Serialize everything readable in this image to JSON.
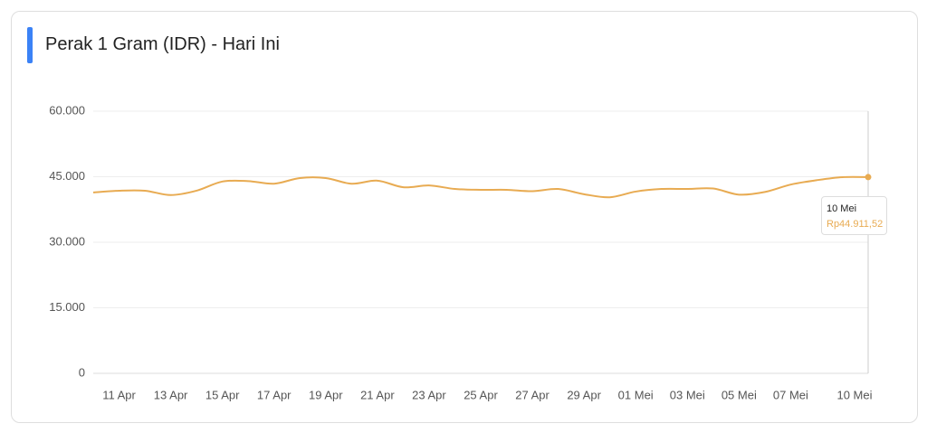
{
  "chart_data": {
    "type": "line",
    "title": "Perak 1 Gram (IDR) - Hari Ini",
    "categories": [
      null,
      "11 Apr",
      null,
      "13 Apr",
      null,
      "15 Apr",
      null,
      "17 Apr",
      null,
      "19 Apr",
      null,
      "21 Apr",
      null,
      "23 Apr",
      null,
      "25 Apr",
      null,
      "27 Apr",
      null,
      "29 Apr",
      null,
      "01 Mei",
      null,
      "03 Mei",
      null,
      "05 Mei",
      null,
      "07 Mei",
      null,
      null,
      "10 Mei"
    ],
    "values": [
      41400,
      41800,
      41800,
      40800,
      41800,
      43900,
      44000,
      43400,
      44700,
      44700,
      43400,
      44100,
      42600,
      43000,
      42200,
      42000,
      42000,
      41700,
      42200,
      41000,
      40300,
      41600,
      42200,
      42200,
      42300,
      40900,
      41500,
      43200,
      44200,
      44900,
      44911.52
    ],
    "color": "#e8ab52",
    "ylim": [
      0,
      60000
    ],
    "yticks": [
      0,
      {
        "value": 15000,
        "label": "15.000"
      },
      {
        "value": 30000,
        "label": "30.000"
      },
      {
        "value": 45000,
        "label": "45.000"
      },
      {
        "value": 60000,
        "label": "60.000"
      }
    ],
    "grid": true,
    "tooltip_label": "Rp44.911,52"
  }
}
